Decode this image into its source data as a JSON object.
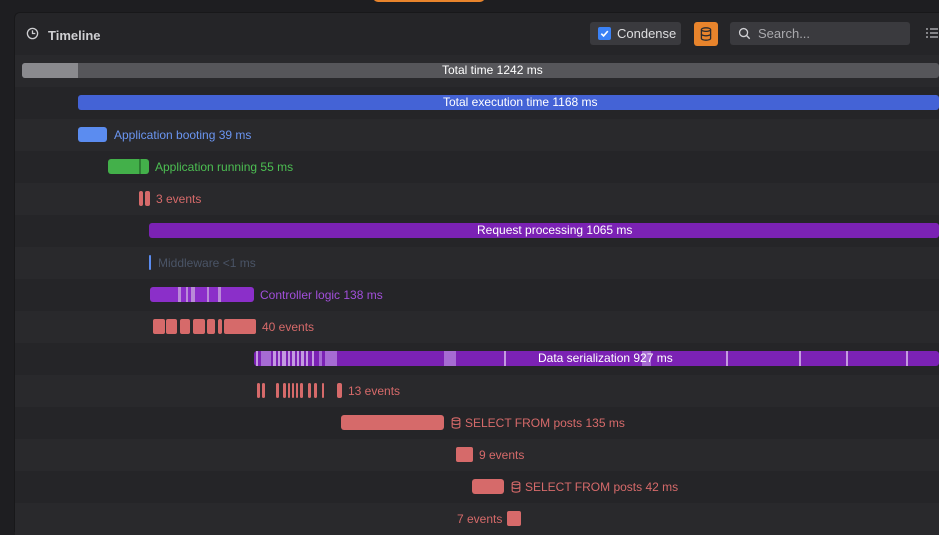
{
  "panel": {
    "title": "Timeline"
  },
  "toolbar": {
    "condense_label": "Condense",
    "search_placeholder": "Search..."
  },
  "colors": {
    "accent": "#e8842c",
    "gray": "#6e6e72",
    "blue": "#4463d6",
    "light_blue": "#5b8cf0",
    "green": "#43b04a",
    "red": "#d66a6a",
    "purple": "#7b22b4"
  },
  "timeline": {
    "total": "Total time 1242 ms",
    "execution": "Total execution time 1168 ms",
    "booting": "Application booting 39 ms",
    "running": "Application running 55 ms",
    "running_events": "3 events",
    "request": "Request processing 1065 ms",
    "middleware": "Middleware <1 ms",
    "controller": "Controller logic 138 ms",
    "controller_events": "40 events",
    "serialization": "Data serialization 927 ms",
    "serialization_events": "13 events",
    "query1": "SELECT FROM posts 135 ms",
    "query1_events": "9 events",
    "query2": "SELECT FROM posts 42 ms",
    "query2_events": "7 events"
  }
}
